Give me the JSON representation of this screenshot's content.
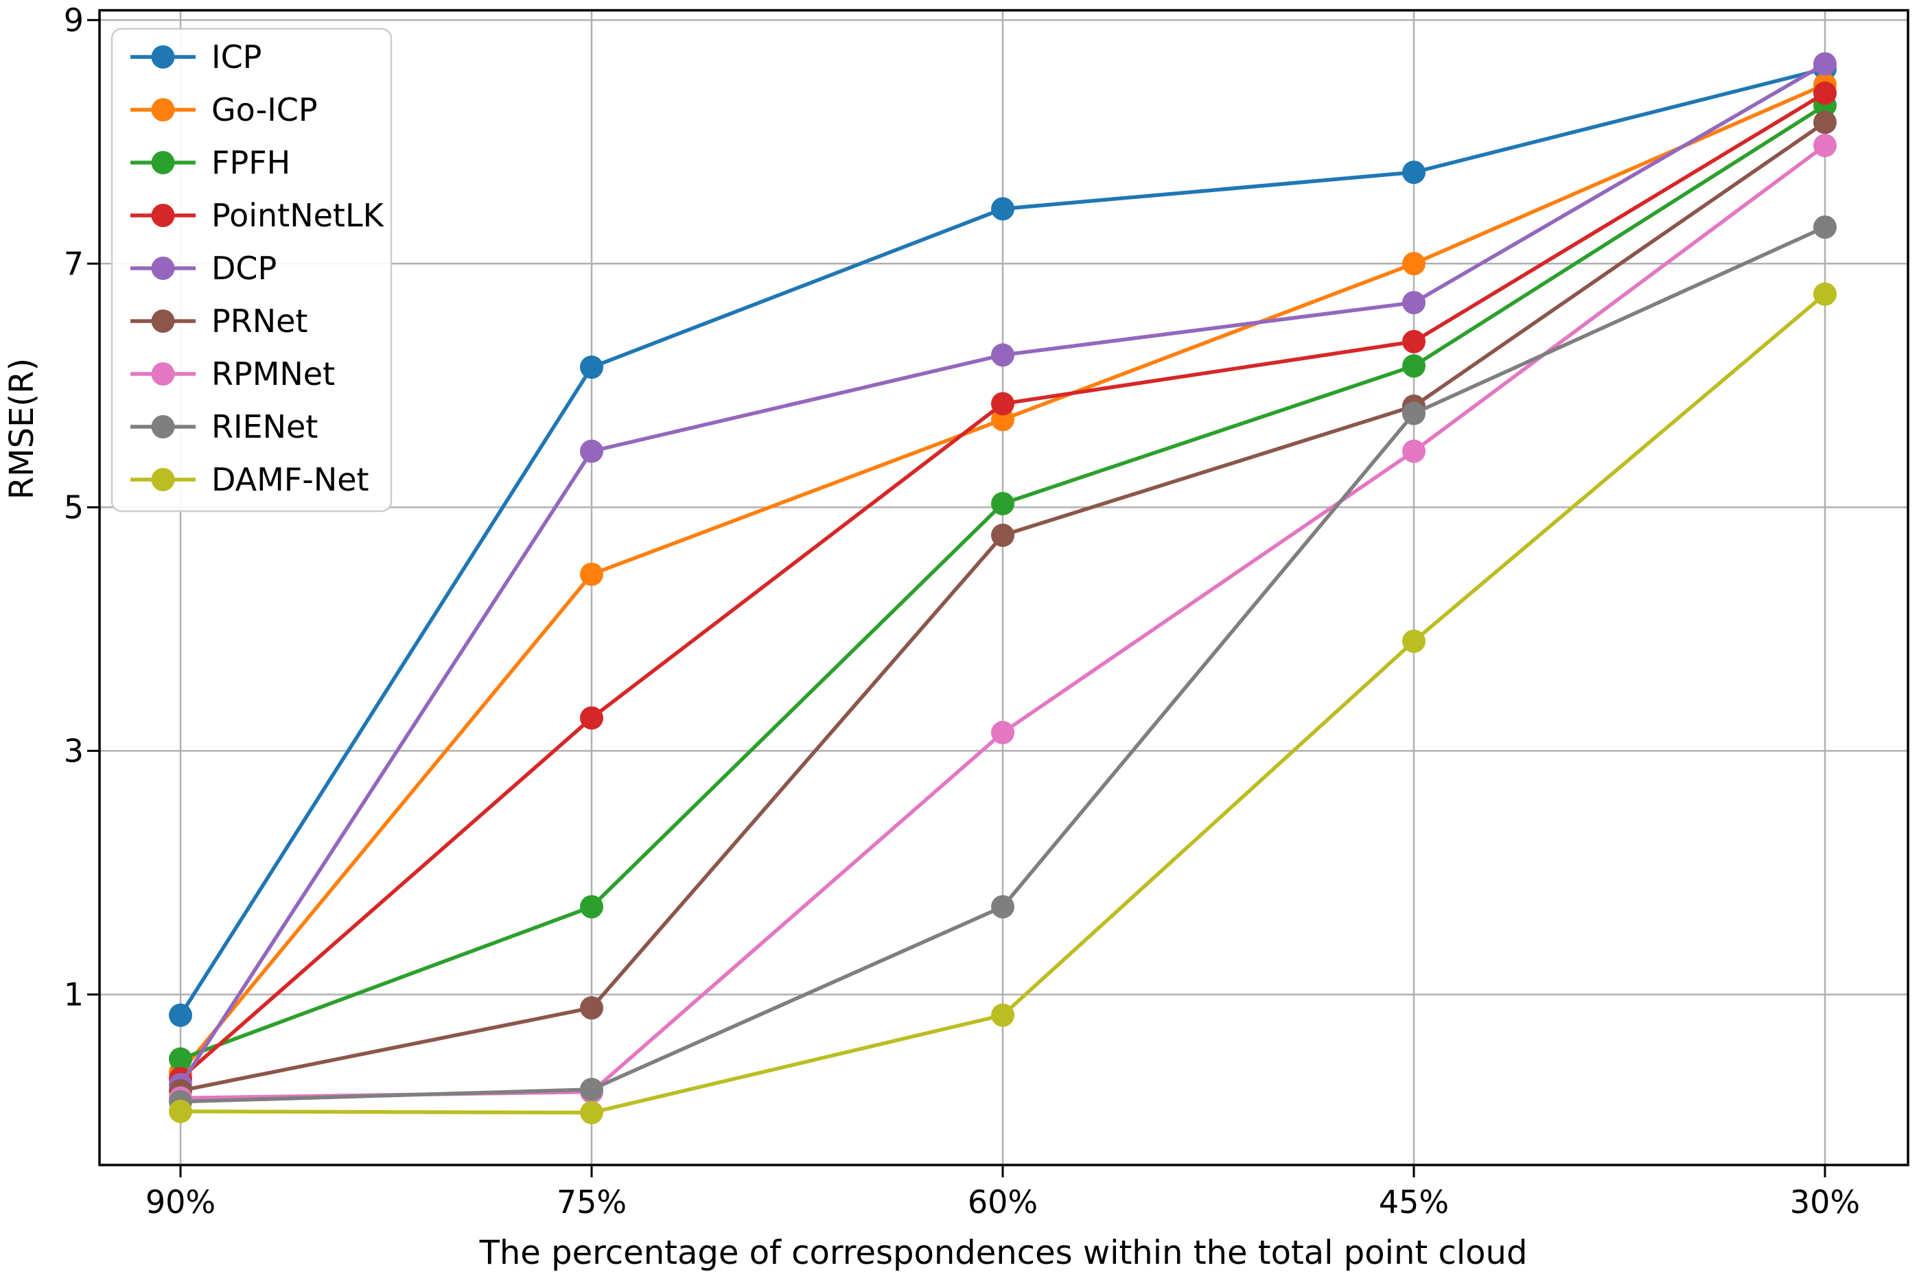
{
  "chart_data": {
    "type": "line",
    "title": "",
    "xlabel": "The percentage of correspondences within the total point cloud",
    "ylabel": "RMSE(R)",
    "categories": [
      "90%",
      "75%",
      "60%",
      "45%",
      "30%"
    ],
    "yticks": [
      1,
      3,
      5,
      7,
      9
    ],
    "ylim": [
      -0.4,
      9.08
    ],
    "grid": true,
    "legend_position": "upper left",
    "series": [
      {
        "name": "ICP",
        "color": "#1f77b4",
        "values": [
          0.83,
          6.15,
          7.45,
          7.75,
          8.6
        ]
      },
      {
        "name": "Go-ICP",
        "color": "#ff7f0e",
        "values": [
          0.36,
          4.45,
          5.72,
          7.0,
          8.47
        ]
      },
      {
        "name": "FPFH",
        "color": "#2ca02c",
        "values": [
          0.47,
          1.72,
          5.03,
          6.16,
          8.3
        ]
      },
      {
        "name": "PointNetLK",
        "color": "#d62728",
        "values": [
          0.31,
          3.27,
          5.85,
          6.36,
          8.4
        ]
      },
      {
        "name": "DCP",
        "color": "#9467bd",
        "values": [
          0.26,
          5.46,
          6.25,
          6.68,
          8.64
        ]
      },
      {
        "name": "PRNet",
        "color": "#8c564b",
        "values": [
          0.21,
          0.89,
          4.77,
          5.83,
          8.16
        ]
      },
      {
        "name": "RPMNet",
        "color": "#e377c2",
        "values": [
          0.15,
          0.2,
          3.15,
          5.46,
          7.97
        ]
      },
      {
        "name": "RIENet",
        "color": "#7f7f7f",
        "values": [
          0.12,
          0.22,
          1.72,
          5.77,
          7.3
        ]
      },
      {
        "name": "DAMF-Net",
        "color": "#bcbd22",
        "values": [
          0.04,
          0.03,
          0.83,
          3.9,
          6.75
        ]
      }
    ]
  }
}
